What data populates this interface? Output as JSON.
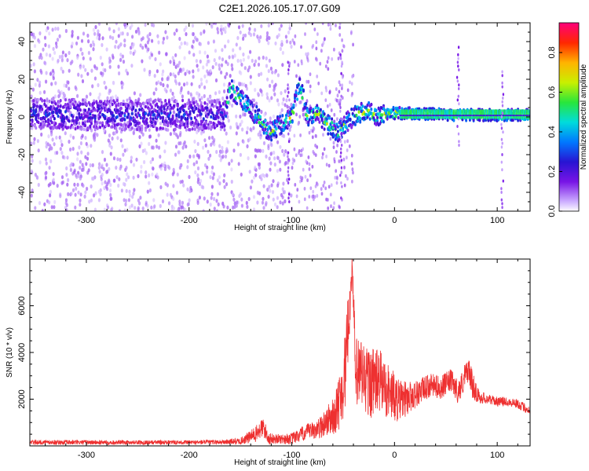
{
  "figure_title": "C2E1.2026.105.17.07.G09",
  "chart_data": [
    {
      "type": "heatmap",
      "title": "",
      "xlabel": "Height of straight line (km)",
      "ylabel": "Frequency (Hz)",
      "xlim": [
        -355,
        132
      ],
      "ylim": [
        -50,
        50
      ],
      "xticks": [
        "-300",
        "-200",
        "-100",
        "0",
        "100"
      ],
      "xtick_values": [
        -300,
        -200,
        -100,
        0,
        100
      ],
      "yticks": [
        "-40",
        "-20",
        "0",
        "20",
        "40"
      ],
      "ytick_values": [
        -40,
        -20,
        0,
        20,
        40
      ],
      "grid": false,
      "colorbar": {
        "label": "Normalized spectral amplitude",
        "range": [
          0,
          0.95
        ],
        "ticks": [
          "0.0",
          "0.2",
          "0.4",
          "0.6",
          "0.8"
        ],
        "tick_values": [
          0,
          0.2,
          0.4,
          0.6,
          0.8
        ],
        "colormap": "rainbow (white-purple-blue-cyan-green-yellow-orange-red-magenta)"
      },
      "ridge": [
        {
          "x": -355,
          "f": 2
        },
        {
          "x": -300,
          "f": 1
        },
        {
          "x": -250,
          "f": 1
        },
        {
          "x": -200,
          "f": 1
        },
        {
          "x": -165,
          "f": 1
        },
        {
          "x": -160,
          "f": 15
        },
        {
          "x": -150,
          "f": 10
        },
        {
          "x": -140,
          "f": 4
        },
        {
          "x": -130,
          "f": -2
        },
        {
          "x": -122,
          "f": -8
        },
        {
          "x": -100,
          "f": 0
        },
        {
          "x": -92,
          "f": 18
        },
        {
          "x": -85,
          "f": 0
        },
        {
          "x": -75,
          "f": 2
        },
        {
          "x": -65,
          "f": -4
        },
        {
          "x": -55,
          "f": -8
        },
        {
          "x": -45,
          "f": -2
        },
        {
          "x": -35,
          "f": 2
        },
        {
          "x": -25,
          "f": 3
        },
        {
          "x": -15,
          "f": 0
        },
        {
          "x": -5,
          "f": 2
        },
        {
          "x": 10,
          "f": 2
        },
        {
          "x": 60,
          "f": 1
        },
        {
          "x": 132,
          "f": 1
        }
      ]
    },
    {
      "type": "line",
      "title": "",
      "xlabel": "Height of straight line (km)",
      "ylabel": "SNR (10 * v/v)",
      "xlim": [
        -355,
        132
      ],
      "ylim": [
        0,
        8000
      ],
      "xticks": [
        "-300",
        "-200",
        "-100",
        "0",
        "100"
      ],
      "xtick_values": [
        -300,
        -200,
        -100,
        0,
        100
      ],
      "yticks": [
        "2000",
        "4000",
        "6000"
      ],
      "ytick_values": [
        2000,
        4000,
        6000
      ],
      "grid": false,
      "series": [
        {
          "color": "#ee3030",
          "x": [
            -355,
            -300,
            -250,
            -200,
            -170,
            -150,
            -135,
            -128,
            -122,
            -115,
            -100,
            -85,
            -75,
            -65,
            -58,
            -52,
            -48,
            -44,
            -41,
            -38,
            -33,
            -25,
            -15,
            -5,
            5,
            20,
            35,
            45,
            55,
            62,
            68,
            72,
            76,
            82,
            92,
            100,
            110,
            120,
            132
          ],
          "y": [
            150,
            150,
            150,
            150,
            160,
            200,
            500,
            800,
            300,
            300,
            300,
            600,
            700,
            1100,
            1300,
            2200,
            3200,
            5800,
            7800,
            2900,
            3100,
            2700,
            2800,
            2300,
            1900,
            2200,
            2600,
            2500,
            2800,
            2300,
            2900,
            3300,
            2600,
            2100,
            2000,
            1900,
            1900,
            1800,
            1500
          ],
          "noise_amplitude": [
            100,
            100,
            90,
            90,
            100,
            150,
            350,
            450,
            250,
            200,
            250,
            350,
            400,
            700,
            800,
            1400,
            1700,
            1300,
            500,
            1800,
            1600,
            1600,
            1400,
            1200,
            900,
            600,
            500,
            500,
            500,
            500,
            600,
            500,
            600,
            300,
            200,
            200,
            200,
            200,
            200
          ]
        }
      ]
    }
  ]
}
